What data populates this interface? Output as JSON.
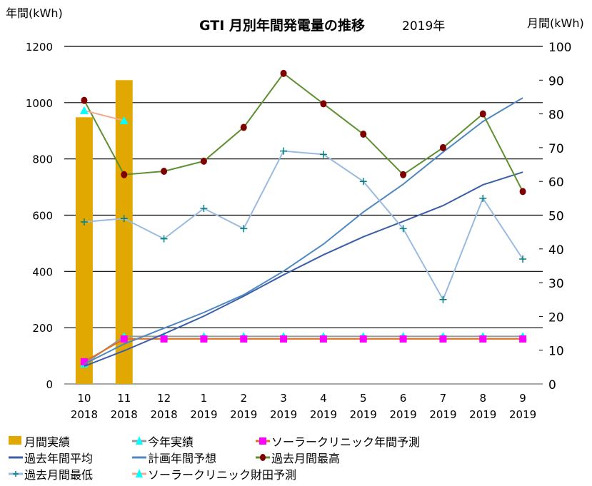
{
  "chart_data": {
    "type": "bar+line",
    "title": "GTI 月別年間発電量の推移",
    "subtitle": "2019年",
    "ylabel_left": "年間(kWh)",
    "ylabel_right": "月間(kWh)",
    "ylim_left": [
      0,
      1200
    ],
    "ylim_right": [
      0,
      100
    ],
    "yticks_left": [
      "0",
      "200",
      "400",
      "600",
      "800",
      "1000",
      "1200"
    ],
    "yticks_right": [
      "0",
      "10",
      "20",
      "30",
      "40",
      "50",
      "60",
      "70",
      "80",
      "90",
      "100"
    ],
    "grid": true,
    "legend_position": "bottom",
    "categories": [
      [
        "10",
        "2018"
      ],
      [
        "11",
        "2018"
      ],
      [
        "12",
        "2018"
      ],
      [
        "1",
        "2019"
      ],
      [
        "2",
        "2019"
      ],
      [
        "3",
        "2019"
      ],
      [
        "4",
        "2019"
      ],
      [
        "5",
        "2019"
      ],
      [
        "6",
        "2019"
      ],
      [
        "7",
        "2019"
      ],
      [
        "8",
        "2019"
      ],
      [
        "9",
        "2019"
      ]
    ],
    "series": [
      {
        "name": "月間実績",
        "kind": "bar",
        "axis": "right",
        "color": "#e0a800",
        "values": [
          79,
          90,
          null,
          null,
          null,
          null,
          null,
          null,
          null,
          null,
          null,
          null
        ]
      },
      {
        "name": "今年実績",
        "kind": "line",
        "axis": "left",
        "color": "#999999",
        "marker": "triangle",
        "marker_color": "#00ffff",
        "values": [
          71,
          169,
          169,
          169,
          169,
          169,
          169,
          169,
          169,
          169,
          169,
          169
        ]
      },
      {
        "name": "ソーラークリニック年間予測",
        "kind": "line",
        "axis": "left",
        "color": "#e07020",
        "marker": "square",
        "marker_color": "#ff00ff",
        "values": [
          79,
          160,
          160,
          160,
          160,
          160,
          160,
          160,
          160,
          160,
          160,
          160
        ]
      },
      {
        "name": "過去年間平均",
        "kind": "line",
        "axis": "left",
        "color": "#3a5fa8",
        "marker": "none",
        "values": [
          63,
          118,
          178,
          241,
          312,
          388,
          459,
          523,
          578,
          634,
          708,
          753
        ]
      },
      {
        "name": "計画年間予想",
        "kind": "line",
        "axis": "left",
        "color": "#4f88c0",
        "marker": "none",
        "values": [
          71,
          142,
          198,
          254,
          317,
          401,
          497,
          611,
          710,
          824,
          933,
          1017
        ]
      },
      {
        "name": "過去月間最高",
        "kind": "line",
        "axis": "right",
        "color": "#5f9030",
        "marker": "circle",
        "marker_color": "#800000",
        "values": [
          84,
          62,
          63,
          66,
          76,
          92,
          83,
          74,
          62,
          70,
          80,
          57
        ]
      },
      {
        "name": "過去月間最低",
        "kind": "line",
        "axis": "right",
        "color": "#99bbe0",
        "marker": "plus",
        "marker_color": "#007f7f",
        "values": [
          48,
          49,
          43,
          52,
          46,
          69,
          68,
          60,
          46,
          25,
          55,
          37
        ]
      },
      {
        "name": "ソーラークリニック財田予測",
        "kind": "line",
        "axis": "right",
        "color": "#f4a890",
        "marker": "triangle",
        "marker_color": "#00ffff",
        "values": [
          81,
          78,
          null,
          null,
          null,
          null,
          null,
          null,
          null,
          null,
          null,
          null
        ]
      }
    ]
  }
}
